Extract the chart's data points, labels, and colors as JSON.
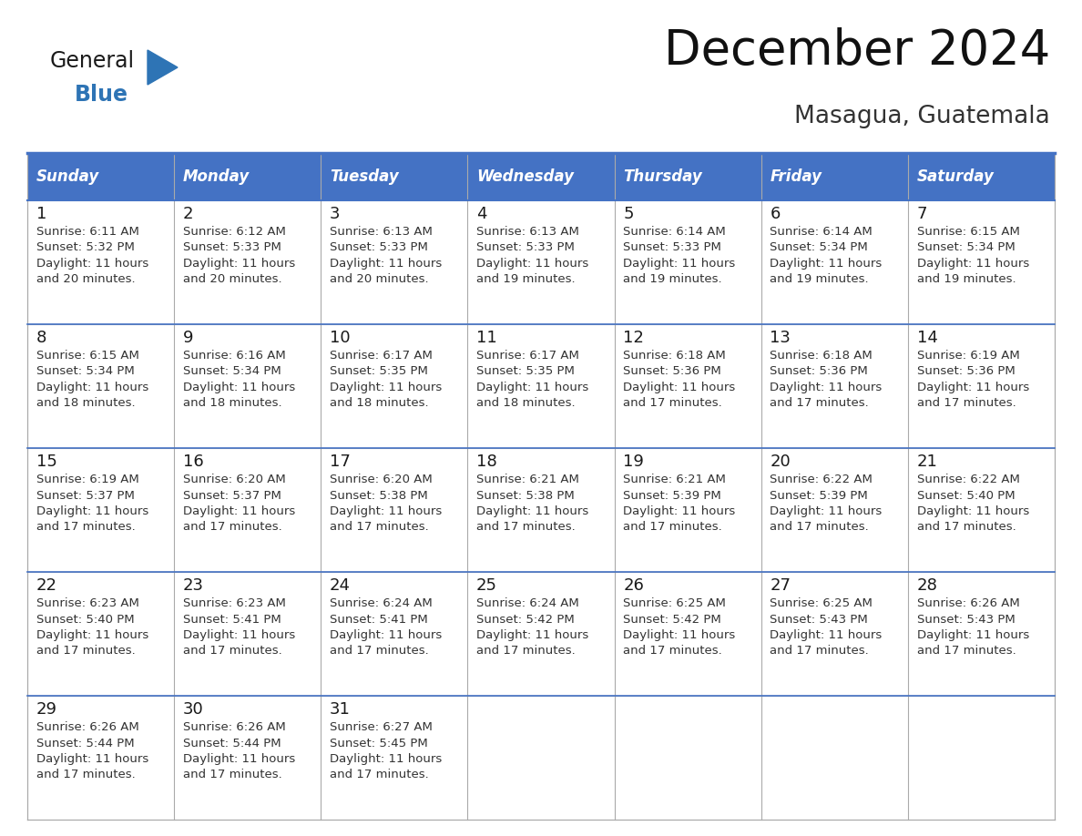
{
  "title": "December 2024",
  "subtitle": "Masagua, Guatemala",
  "header_bg_color": "#4472C4",
  "header_text_color": "#FFFFFF",
  "cell_bg_color": "#FFFFFF",
  "grid_line_color": "#AAAAAA",
  "top_border_color": "#4472C4",
  "cell_text_color": "#333333",
  "day_number_color": "#1a1a1a",
  "logo_black_color": "#1a1a1a",
  "logo_blue_color": "#2E74B5",
  "logo_triangle_color": "#2E74B5",
  "days_of_week": [
    "Sunday",
    "Monday",
    "Tuesday",
    "Wednesday",
    "Thursday",
    "Friday",
    "Saturday"
  ],
  "weeks": [
    [
      {
        "day": 1,
        "sunrise": "6:11 AM",
        "sunset": "5:32 PM",
        "daylight_hours": 11,
        "daylight_minutes": 20
      },
      {
        "day": 2,
        "sunrise": "6:12 AM",
        "sunset": "5:33 PM",
        "daylight_hours": 11,
        "daylight_minutes": 20
      },
      {
        "day": 3,
        "sunrise": "6:13 AM",
        "sunset": "5:33 PM",
        "daylight_hours": 11,
        "daylight_minutes": 20
      },
      {
        "day": 4,
        "sunrise": "6:13 AM",
        "sunset": "5:33 PM",
        "daylight_hours": 11,
        "daylight_minutes": 19
      },
      {
        "day": 5,
        "sunrise": "6:14 AM",
        "sunset": "5:33 PM",
        "daylight_hours": 11,
        "daylight_minutes": 19
      },
      {
        "day": 6,
        "sunrise": "6:14 AM",
        "sunset": "5:34 PM",
        "daylight_hours": 11,
        "daylight_minutes": 19
      },
      {
        "day": 7,
        "sunrise": "6:15 AM",
        "sunset": "5:34 PM",
        "daylight_hours": 11,
        "daylight_minutes": 19
      }
    ],
    [
      {
        "day": 8,
        "sunrise": "6:15 AM",
        "sunset": "5:34 PM",
        "daylight_hours": 11,
        "daylight_minutes": 18
      },
      {
        "day": 9,
        "sunrise": "6:16 AM",
        "sunset": "5:34 PM",
        "daylight_hours": 11,
        "daylight_minutes": 18
      },
      {
        "day": 10,
        "sunrise": "6:17 AM",
        "sunset": "5:35 PM",
        "daylight_hours": 11,
        "daylight_minutes": 18
      },
      {
        "day": 11,
        "sunrise": "6:17 AM",
        "sunset": "5:35 PM",
        "daylight_hours": 11,
        "daylight_minutes": 18
      },
      {
        "day": 12,
        "sunrise": "6:18 AM",
        "sunset": "5:36 PM",
        "daylight_hours": 11,
        "daylight_minutes": 17
      },
      {
        "day": 13,
        "sunrise": "6:18 AM",
        "sunset": "5:36 PM",
        "daylight_hours": 11,
        "daylight_minutes": 17
      },
      {
        "day": 14,
        "sunrise": "6:19 AM",
        "sunset": "5:36 PM",
        "daylight_hours": 11,
        "daylight_minutes": 17
      }
    ],
    [
      {
        "day": 15,
        "sunrise": "6:19 AM",
        "sunset": "5:37 PM",
        "daylight_hours": 11,
        "daylight_minutes": 17
      },
      {
        "day": 16,
        "sunrise": "6:20 AM",
        "sunset": "5:37 PM",
        "daylight_hours": 11,
        "daylight_minutes": 17
      },
      {
        "day": 17,
        "sunrise": "6:20 AM",
        "sunset": "5:38 PM",
        "daylight_hours": 11,
        "daylight_minutes": 17
      },
      {
        "day": 18,
        "sunrise": "6:21 AM",
        "sunset": "5:38 PM",
        "daylight_hours": 11,
        "daylight_minutes": 17
      },
      {
        "day": 19,
        "sunrise": "6:21 AM",
        "sunset": "5:39 PM",
        "daylight_hours": 11,
        "daylight_minutes": 17
      },
      {
        "day": 20,
        "sunrise": "6:22 AM",
        "sunset": "5:39 PM",
        "daylight_hours": 11,
        "daylight_minutes": 17
      },
      {
        "day": 21,
        "sunrise": "6:22 AM",
        "sunset": "5:40 PM",
        "daylight_hours": 11,
        "daylight_minutes": 17
      }
    ],
    [
      {
        "day": 22,
        "sunrise": "6:23 AM",
        "sunset": "5:40 PM",
        "daylight_hours": 11,
        "daylight_minutes": 17
      },
      {
        "day": 23,
        "sunrise": "6:23 AM",
        "sunset": "5:41 PM",
        "daylight_hours": 11,
        "daylight_minutes": 17
      },
      {
        "day": 24,
        "sunrise": "6:24 AM",
        "sunset": "5:41 PM",
        "daylight_hours": 11,
        "daylight_minutes": 17
      },
      {
        "day": 25,
        "sunrise": "6:24 AM",
        "sunset": "5:42 PM",
        "daylight_hours": 11,
        "daylight_minutes": 17
      },
      {
        "day": 26,
        "sunrise": "6:25 AM",
        "sunset": "5:42 PM",
        "daylight_hours": 11,
        "daylight_minutes": 17
      },
      {
        "day": 27,
        "sunrise": "6:25 AM",
        "sunset": "5:43 PM",
        "daylight_hours": 11,
        "daylight_minutes": 17
      },
      {
        "day": 28,
        "sunrise": "6:26 AM",
        "sunset": "5:43 PM",
        "daylight_hours": 11,
        "daylight_minutes": 17
      }
    ],
    [
      {
        "day": 29,
        "sunrise": "6:26 AM",
        "sunset": "5:44 PM",
        "daylight_hours": 11,
        "daylight_minutes": 17
      },
      {
        "day": 30,
        "sunrise": "6:26 AM",
        "sunset": "5:44 PM",
        "daylight_hours": 11,
        "daylight_minutes": 17
      },
      {
        "day": 31,
        "sunrise": "6:27 AM",
        "sunset": "5:45 PM",
        "daylight_hours": 11,
        "daylight_minutes": 17
      },
      null,
      null,
      null,
      null
    ]
  ],
  "title_fontsize": 38,
  "subtitle_fontsize": 19,
  "header_fontsize": 12,
  "day_num_fontsize": 13,
  "cell_text_fontsize": 9.5
}
